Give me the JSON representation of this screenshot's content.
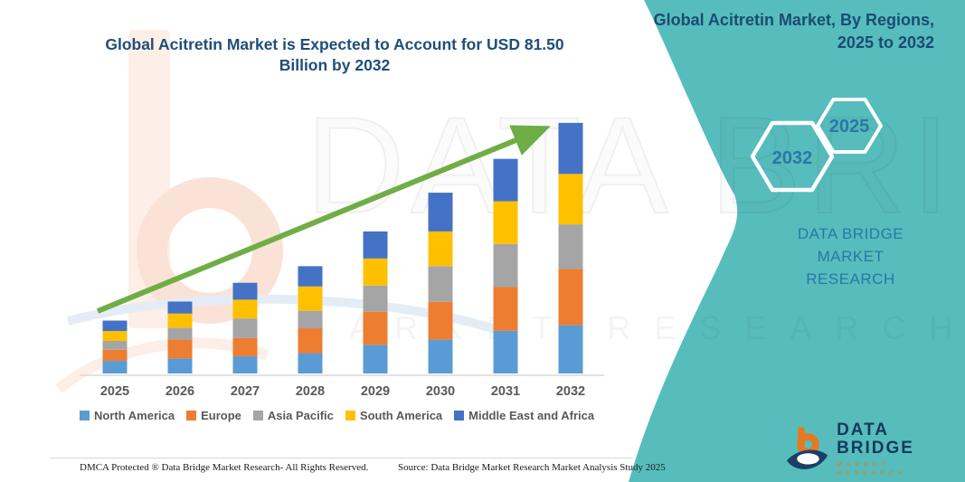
{
  "header": {
    "title_line1": "Global Acitretin Market is Expected to Account for USD 81.50",
    "title_line2": "Billion by 2032"
  },
  "side_panel": {
    "heading_line1": "Global Acitretin Market, By Regions,",
    "heading_line2": "2025 to 2032",
    "hexagon_back_year": "2032",
    "hexagon_front_year": "2025",
    "brand_line1": "DATA BRIDGE MARKET",
    "brand_line2": "RESEARCH",
    "accent_color": "#56BDBC"
  },
  "logo": {
    "name": "DATA BRIDGE",
    "subtitle": "MARKET RESEARCH"
  },
  "watermark": {
    "line1": "DATA BRIDGE",
    "line2": "MARKET RESEARCH"
  },
  "footer": {
    "left": "DMCA Protected ® Data Bridge Market Research-  All Rights Reserved.",
    "source": "Source: Data Bridge Market Research  Market Analysis Study 2025"
  },
  "chart_data": {
    "type": "bar",
    "stacked": true,
    "title": "Global Acitretin Market is Expected to Account for USD 81.50 Billion by 2032",
    "unit": "USD Billion",
    "values_estimated_from_pixels": true,
    "categories": [
      "2025",
      "2026",
      "2027",
      "2028",
      "2029",
      "2030",
      "2031",
      "2032"
    ],
    "series": [
      {
        "name": "North America",
        "color": "#5B9BD5",
        "values": [
          4.1,
          4.9,
          5.6,
          6.6,
          9.3,
          11.0,
          13.9,
          15.7
        ]
      },
      {
        "name": "Europe",
        "color": "#ED7D31",
        "values": [
          3.6,
          6.1,
          5.9,
          8.1,
          10.8,
          12.3,
          14.2,
          18.3
        ]
      },
      {
        "name": "Asia Pacific",
        "color": "#A5A5A5",
        "values": [
          2.9,
          3.9,
          6.4,
          5.7,
          8.5,
          11.6,
          14.0,
          14.5
        ]
      },
      {
        "name": "South America",
        "color": "#FFC000",
        "values": [
          3.2,
          4.6,
          6.1,
          7.9,
          8.8,
          11.3,
          13.9,
          16.4
        ]
      },
      {
        "name": "Middle East and Africa",
        "color": "#4472C4",
        "values": [
          3.4,
          3.9,
          5.5,
          6.6,
          8.8,
          12.6,
          13.8,
          16.6
        ]
      }
    ],
    "totals": [
      17.2,
      23.4,
      29.5,
      34.9,
      46.2,
      58.8,
      69.8,
      81.5
    ],
    "axes": {
      "x_visible": true,
      "y_visible": false,
      "gridlines": false,
      "y_implied_range": [
        0,
        85
      ]
    },
    "legend_position": "bottom",
    "annotation": "green upward trend arrow from 2025 to 2032",
    "annotation_color": "#6FAE46"
  }
}
